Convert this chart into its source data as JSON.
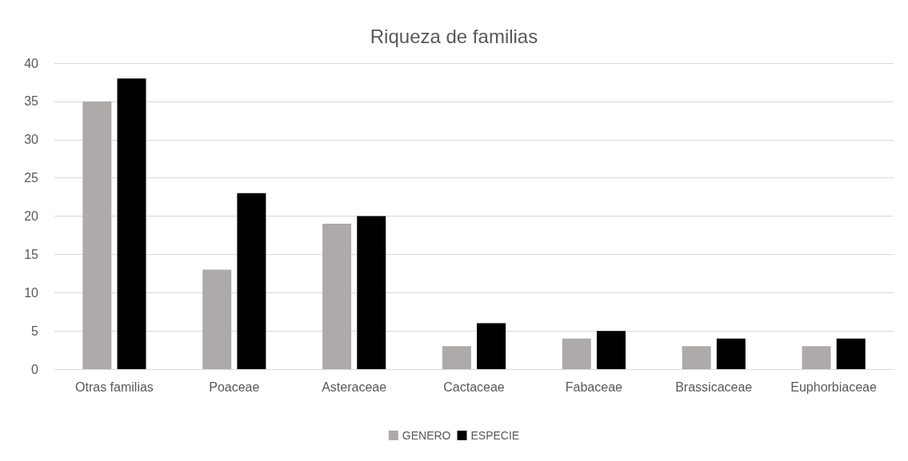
{
  "chart_data": {
    "type": "bar",
    "title": "Riqueza de familias",
    "categories": [
      "Otras familias",
      "Poaceae",
      "Asteraceae",
      "Cactaceae",
      "Fabaceae",
      "Brassicaceae",
      "Euphorbiaceae"
    ],
    "series": [
      {
        "name": "GENERO",
        "color": "#aeaaaa",
        "values": [
          35,
          13,
          19,
          3,
          4,
          3,
          3
        ]
      },
      {
        "name": "ESPECIE",
        "color": "#000000",
        "values": [
          38,
          23,
          20,
          6,
          5,
          4,
          4
        ]
      }
    ],
    "ylim": [
      0,
      40
    ],
    "yticks": [
      0,
      5,
      10,
      15,
      20,
      25,
      30,
      35,
      40
    ],
    "grid": "y",
    "legend": "bottom"
  }
}
